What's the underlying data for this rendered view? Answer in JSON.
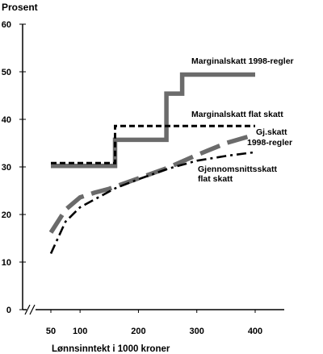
{
  "chart_data": {
    "type": "line",
    "ylabel": "Prosent",
    "xlabel": "Lønnsinntekt  i  1000 kroner",
    "ylim": [
      0,
      60
    ],
    "yticks": [
      0,
      10,
      20,
      30,
      40,
      50,
      60
    ],
    "xticks": [
      50,
      100,
      200,
      300,
      400
    ],
    "axis_break_left": true,
    "grid": false,
    "legend": "inline labels",
    "series": [
      {
        "name": "Marginalskatt 1998-regler",
        "style": "solid-thick-gray",
        "color": "#6b6b6b",
        "points": [
          [
            50,
            30.2
          ],
          [
            160,
            30.2
          ],
          [
            160,
            35.7
          ],
          [
            248,
            35.7
          ],
          [
            248,
            45.4
          ],
          [
            275,
            45.4
          ],
          [
            275,
            49.4
          ],
          [
            400,
            49.4
          ]
        ]
      },
      {
        "name": "Marginalskatt flat skatt",
        "style": "dashed-black",
        "color": "#000000",
        "points": [
          [
            50,
            30.8
          ],
          [
            160,
            30.8
          ],
          [
            160,
            38.6
          ],
          [
            400,
            38.6
          ]
        ]
      },
      {
        "name": "Gj.skatt 1998-regler",
        "style": "long-dash-thick-gray",
        "color": "#6b6b6b",
        "points": [
          [
            50,
            16.2
          ],
          [
            75,
            21
          ],
          [
            100,
            23.6
          ],
          [
            125,
            24.6
          ],
          [
            150,
            25.4
          ],
          [
            200,
            27.6
          ],
          [
            250,
            29.8
          ],
          [
            300,
            32.5
          ],
          [
            350,
            35
          ],
          [
            400,
            36.8
          ]
        ]
      },
      {
        "name": "Gjennomsnittsskatt flat skatt",
        "style": "dash-dot-black",
        "color": "#000000",
        "points": [
          [
            50,
            11.8
          ],
          [
            75,
            18.5
          ],
          [
            100,
            21.5
          ],
          [
            130,
            23.5
          ],
          [
            160,
            25.5
          ],
          [
            200,
            27.4
          ],
          [
            250,
            29.6
          ],
          [
            300,
            31.3
          ],
          [
            350,
            32.3
          ],
          [
            400,
            33.1
          ]
        ]
      }
    ]
  },
  "labels": {
    "marg_1998": "Marginalskatt 1998-regler",
    "marg_flat": "Marginalskatt flat skatt",
    "gj_1998_line1": "Gj.skatt",
    "gj_1998_line2": "1998-regler",
    "gj_flat_line1": "Gjennomsnittsskatt",
    "gj_flat_line2": "flat skatt"
  }
}
